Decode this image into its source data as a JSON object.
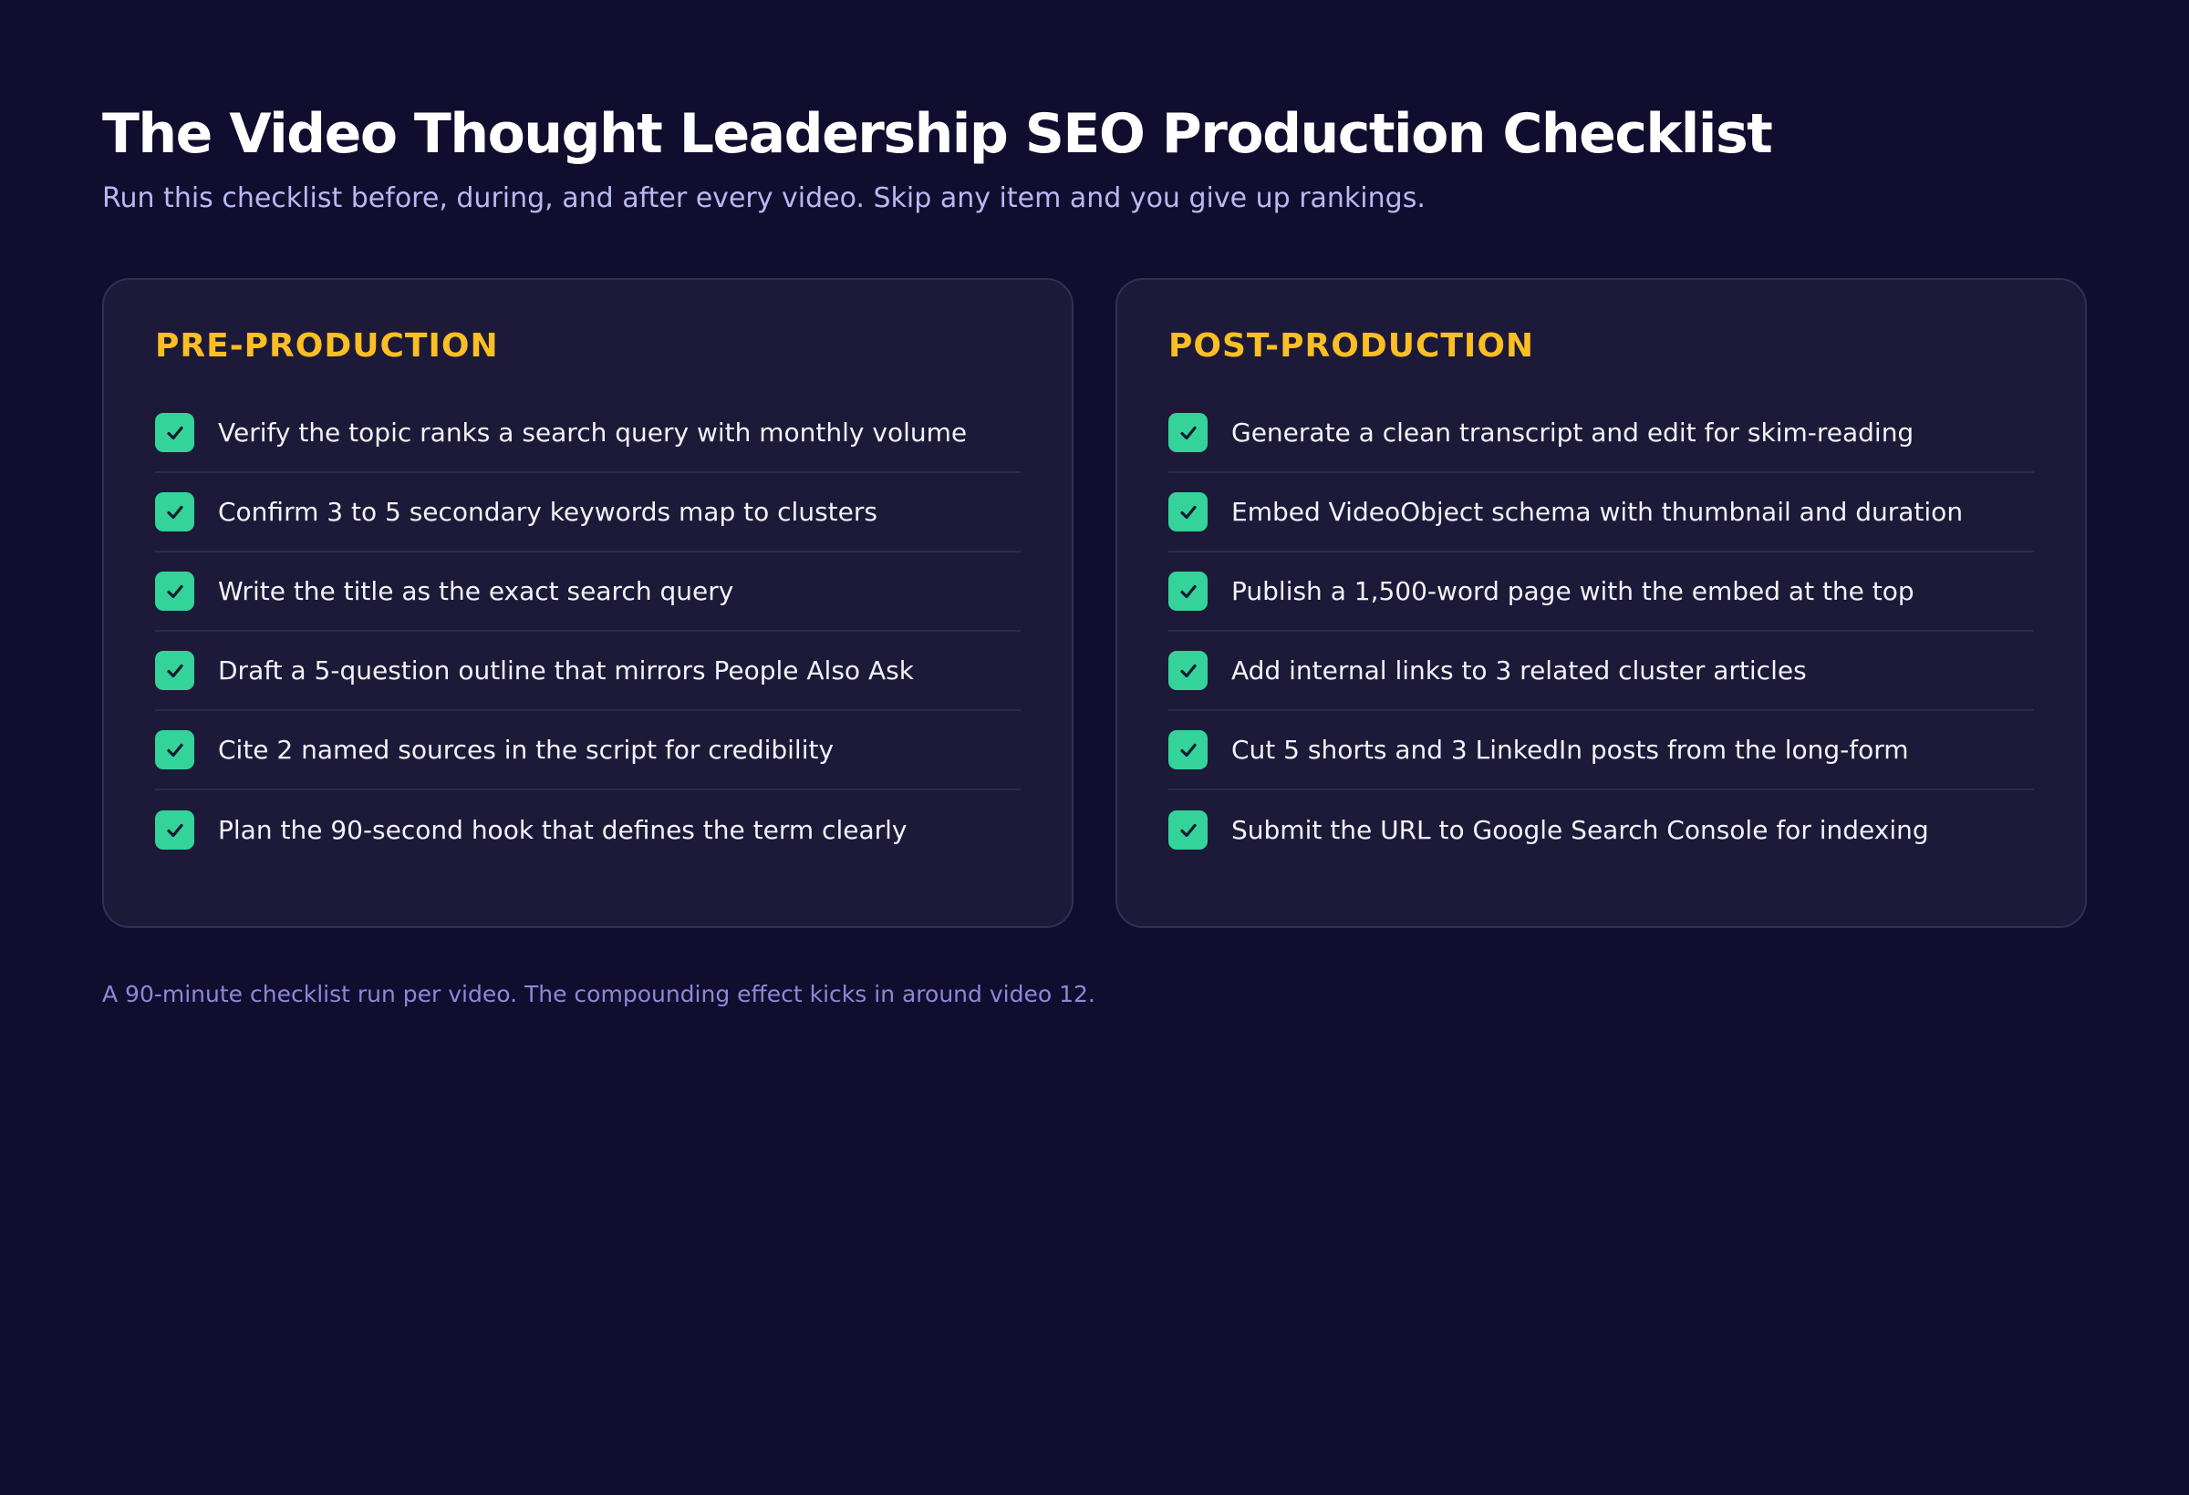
{
  "header": {
    "title": "The Video Thought Leadership SEO Production Checklist",
    "subtitle": "Run this checklist before, during, and after every video. Skip any item and you give up rankings."
  },
  "sections": [
    {
      "heading": "PRE-PRODUCTION",
      "items": [
        "Verify the topic ranks a search query with monthly volume",
        "Confirm 3 to 5 secondary keywords map to clusters",
        "Write the title as the exact search query",
        "Draft a 5-question outline that mirrors People Also Ask",
        "Cite 2 named sources in the script for credibility",
        "Plan the 90-second hook that defines the term clearly"
      ]
    },
    {
      "heading": "POST-PRODUCTION",
      "items": [
        "Generate a clean transcript and edit for skim-reading",
        "Embed VideoObject schema with thumbnail and duration",
        "Publish a 1,500-word page with the embed at the top",
        "Add internal links to 3 related cluster articles",
        "Cut 5 shorts and 3 LinkedIn posts from the long-form",
        "Submit the URL to Google Search Console for indexing"
      ]
    }
  ],
  "footnote": "A 90-minute checklist run per video. The compounding effect kicks in around video 12."
}
